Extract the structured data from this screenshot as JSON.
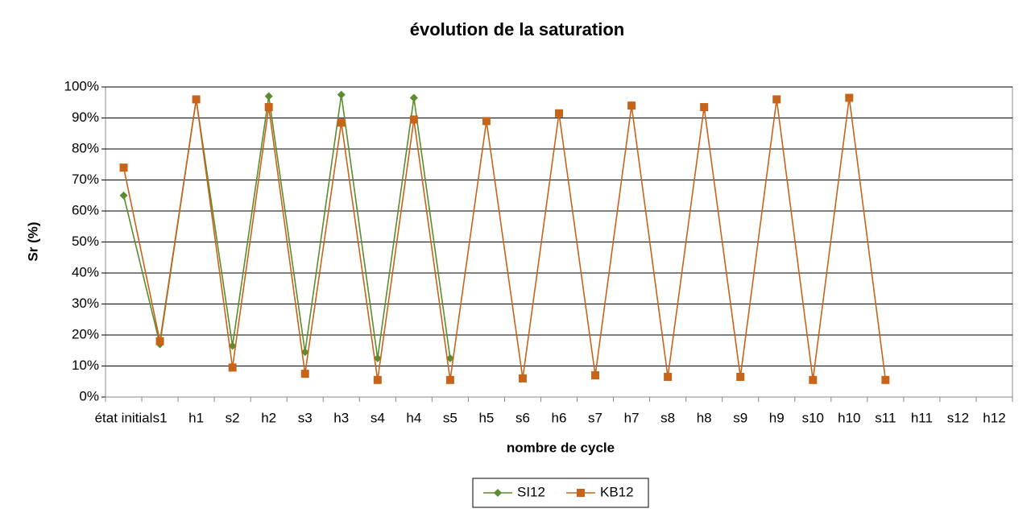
{
  "chart_data": {
    "type": "line",
    "title": "évolution de la saturation",
    "x_label": "nombre de cycle",
    "y_label": "Sr (%)",
    "categories": [
      "état initial",
      "s1",
      "h1",
      "s2",
      "h2",
      "s3",
      "h3",
      "s4",
      "h4",
      "s5",
      "h5",
      "s6",
      "h6",
      "s7",
      "h7",
      "s8",
      "h8",
      "s9",
      "h9",
      "s10",
      "h10",
      "s11",
      "h11",
      "s12",
      "h12"
    ],
    "series": [
      {
        "name": "SI12",
        "color": "#5b8c2f",
        "marker": "diamond",
        "values": [
          65,
          17,
          96,
          16.5,
          97,
          14.5,
          97.5,
          12.5,
          96.5,
          12.5,
          null,
          null,
          null,
          null,
          null,
          null,
          null,
          null,
          null,
          null,
          null,
          null,
          null,
          null,
          null
        ]
      },
      {
        "name": "KB12",
        "color": "#c8641a",
        "marker": "square",
        "values": [
          74,
          18,
          96,
          9.5,
          93.5,
          7.5,
          88.5,
          5.5,
          89.5,
          5.5,
          89,
          6,
          91.5,
          7,
          94,
          6.5,
          93.5,
          6.5,
          96,
          5.5,
          96.5,
          5.5,
          null,
          null,
          null
        ]
      }
    ],
    "ylim": [
      0,
      100
    ],
    "yticks": [
      {
        "value": 0,
        "label": "0%"
      },
      {
        "value": 10,
        "label": "10%"
      },
      {
        "value": 20,
        "label": "20%"
      },
      {
        "value": 30,
        "label": "30%"
      },
      {
        "value": 40,
        "label": "40%"
      },
      {
        "value": 50,
        "label": "50%"
      },
      {
        "value": 60,
        "label": "60%"
      },
      {
        "value": 70,
        "label": "70%"
      },
      {
        "value": 80,
        "label": "80%"
      },
      {
        "value": 90,
        "label": "90%"
      },
      {
        "value": 100,
        "label": "100%"
      }
    ],
    "grid": true,
    "legend": "bottom"
  }
}
